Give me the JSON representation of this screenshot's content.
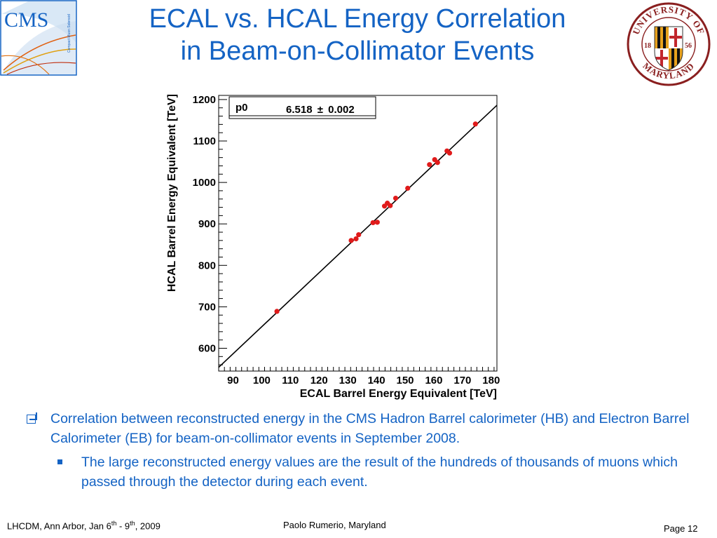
{
  "title": {
    "line1": "ECAL vs. HCAL Energy Correlation",
    "line2": "in Beam-on-Collimator Events"
  },
  "logos": {
    "cms": {
      "text": "CMS",
      "subtitle": "Compact Muon Solenoid"
    },
    "umd": {
      "top": "UNIVERSITY OF",
      "bottom": "MARYLAND",
      "left": "18",
      "right": "56"
    }
  },
  "chart_data": {
    "type": "scatter",
    "xlabel": "ECAL Barrel Energy Equivalent [TeV]",
    "ylabel": "HCAL Barrel Energy Equivalent [TeV]",
    "xlim": [
      85,
      182
    ],
    "ylim": [
      545,
      1210
    ],
    "xticks": [
      90,
      100,
      110,
      120,
      130,
      140,
      150,
      160,
      170,
      180
    ],
    "yticks": [
      600,
      700,
      800,
      900,
      1000,
      1100,
      1200
    ],
    "fit": {
      "param": "p0",
      "value": "6.518",
      "pm": "±",
      "error": "0.002",
      "slope": 6.518
    },
    "points": [
      [
        105.3,
        689
      ],
      [
        131.2,
        860
      ],
      [
        132.9,
        864
      ],
      [
        133.8,
        874
      ],
      [
        138.8,
        903
      ],
      [
        140.3,
        904
      ],
      [
        142.8,
        943
      ],
      [
        143.8,
        950
      ],
      [
        144.8,
        944
      ],
      [
        146.7,
        962
      ],
      [
        150.9,
        986
      ],
      [
        158.5,
        1043
      ],
      [
        160.3,
        1055
      ],
      [
        161.3,
        1048
      ],
      [
        164.6,
        1076
      ],
      [
        165.5,
        1071
      ],
      [
        174.5,
        1141
      ]
    ],
    "grid": false
  },
  "bullets": {
    "item1": "Correlation between reconstructed energy in the CMS Hadron Barrel calorimeter (HB) and Electron Barrel Calorimeter (EB) for beam-on-collimator events in September 2008.",
    "item2": "The large reconstructed energy values are the result of the hundreds of thousands of muons which passed through the detector during each event."
  },
  "footer": {
    "left_a": "LHCDM, Ann Arbor, Jan 6",
    "left_sup1": "th",
    "left_b": " - 9",
    "left_sup2": "th",
    "left_c": ", 2009",
    "center": "Paolo Rumerio,  Maryland",
    "right": "Page 12"
  },
  "colors": {
    "accent": "#1463c4",
    "marker": "#e01b1b",
    "line": "#000000"
  }
}
